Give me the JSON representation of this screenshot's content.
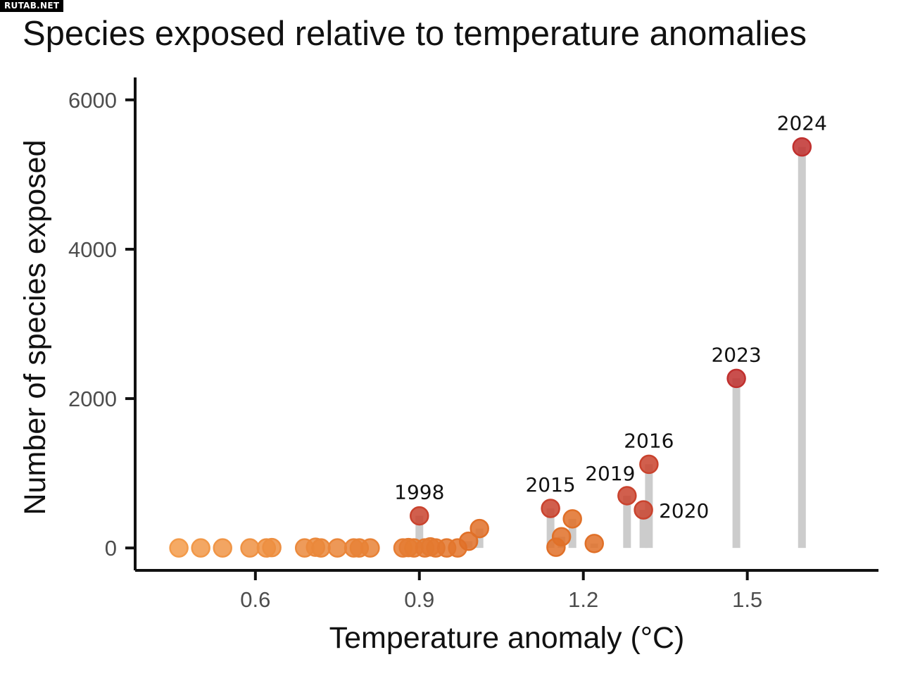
{
  "watermark": "RUTAB.NET",
  "chart_data": {
    "type": "scatter",
    "title": "Species exposed relative to temperature anomalies",
    "xlabel": "Temperature anomaly (°C)",
    "ylabel": "Number of species exposed",
    "xlim": [
      0.38,
      1.74
    ],
    "ylim": [
      -300,
      6300
    ],
    "xticks": [
      0.6,
      0.9,
      1.2,
      1.5
    ],
    "xtick_labels": [
      "0.6",
      "0.9",
      "1.2",
      "1.5"
    ],
    "yticks": [
      0,
      2000,
      4000,
      6000
    ],
    "ytick_labels": [
      "0",
      "2000",
      "4000",
      "6000"
    ],
    "grid": false,
    "legend": "none",
    "colors": {
      "low": "#F39C4B",
      "mid": "#E07028",
      "high": "#C9432E",
      "top": "#C0302E",
      "stem": "#CCCCCC",
      "axis": "#111111"
    },
    "points": [
      {
        "x": 0.46,
        "y": 0,
        "label": ""
      },
      {
        "x": 0.5,
        "y": 0,
        "label": ""
      },
      {
        "x": 0.54,
        "y": 0,
        "label": ""
      },
      {
        "x": 0.59,
        "y": 0,
        "label": ""
      },
      {
        "x": 0.62,
        "y": 0,
        "label": ""
      },
      {
        "x": 0.63,
        "y": 5,
        "label": ""
      },
      {
        "x": 0.69,
        "y": 0,
        "label": ""
      },
      {
        "x": 0.71,
        "y": 10,
        "label": ""
      },
      {
        "x": 0.72,
        "y": 0,
        "label": ""
      },
      {
        "x": 0.75,
        "y": 0,
        "label": ""
      },
      {
        "x": 0.78,
        "y": 0,
        "label": ""
      },
      {
        "x": 0.79,
        "y": 0,
        "label": ""
      },
      {
        "x": 0.81,
        "y": 0,
        "label": ""
      },
      {
        "x": 0.87,
        "y": 0,
        "label": ""
      },
      {
        "x": 0.88,
        "y": 5,
        "label": ""
      },
      {
        "x": 0.89,
        "y": 0,
        "label": ""
      },
      {
        "x": 0.9,
        "y": 430,
        "label": "1998"
      },
      {
        "x": 0.91,
        "y": 0,
        "label": ""
      },
      {
        "x": 0.92,
        "y": 15,
        "label": ""
      },
      {
        "x": 0.93,
        "y": 0,
        "label": ""
      },
      {
        "x": 0.95,
        "y": 0,
        "label": ""
      },
      {
        "x": 0.97,
        "y": 0,
        "label": ""
      },
      {
        "x": 0.99,
        "y": 90,
        "label": ""
      },
      {
        "x": 1.01,
        "y": 260,
        "label": ""
      },
      {
        "x": 1.14,
        "y": 530,
        "label": "2015"
      },
      {
        "x": 1.15,
        "y": 10,
        "label": ""
      },
      {
        "x": 1.16,
        "y": 150,
        "label": ""
      },
      {
        "x": 1.18,
        "y": 390,
        "label": ""
      },
      {
        "x": 1.22,
        "y": 60,
        "label": ""
      },
      {
        "x": 1.28,
        "y": 700,
        "label": "2019"
      },
      {
        "x": 1.31,
        "y": 510,
        "label": "2020"
      },
      {
        "x": 1.32,
        "y": 1120,
        "label": "2016"
      },
      {
        "x": 1.48,
        "y": 2270,
        "label": "2023"
      },
      {
        "x": 1.6,
        "y": 5370,
        "label": "2024"
      }
    ]
  }
}
